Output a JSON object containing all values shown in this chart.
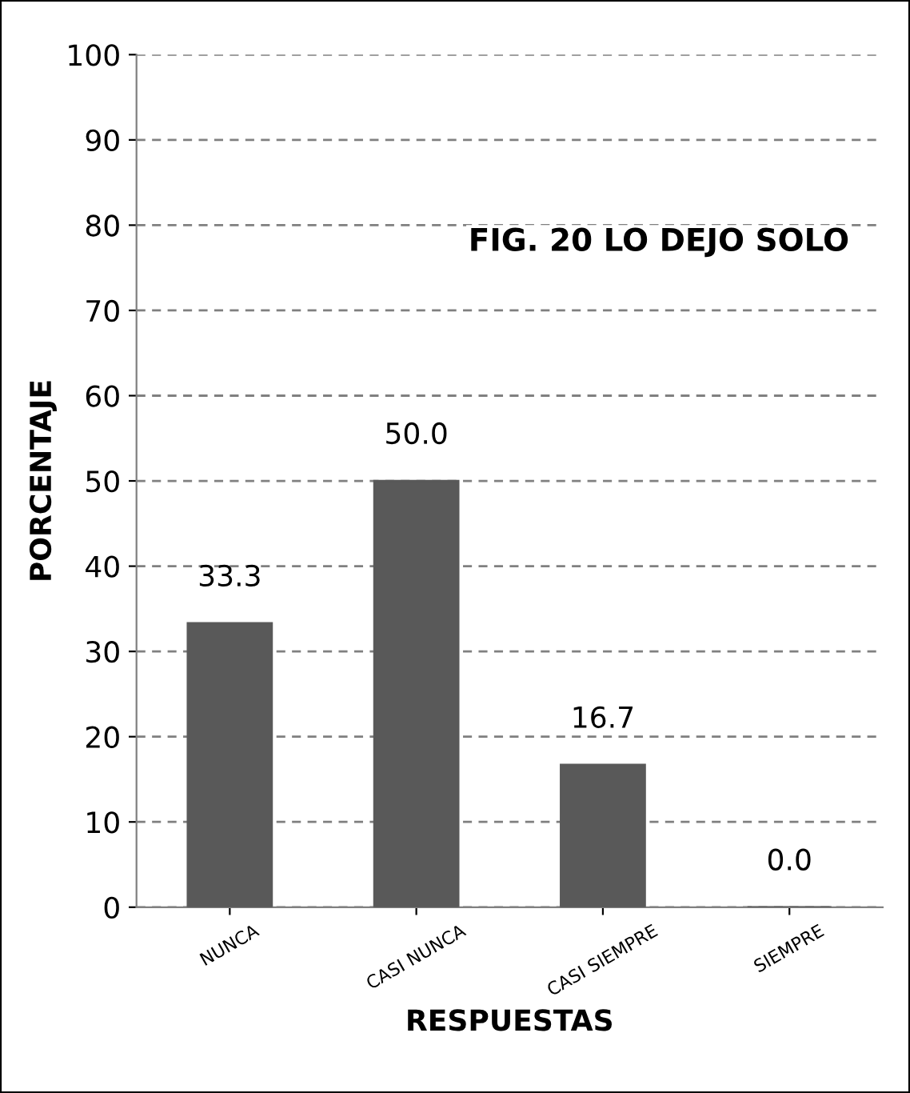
{
  "chart_data": {
    "type": "bar",
    "title": "FIG. 20 LO DEJO SOLO",
    "xlabel": "RESPUESTAS",
    "ylabel": "PORCENTAJE",
    "categories": [
      "NUNCA",
      "CASI NUNCA",
      "CASI SIEMPRE",
      "SIEMPRE"
    ],
    "values": [
      33.3,
      50.0,
      16.7,
      0.0
    ],
    "value_labels": [
      "33.3",
      "50.0",
      "16.7",
      "0.0"
    ],
    "color": "#595959",
    "ylim": [
      0,
      100
    ],
    "yticks": [
      0,
      10,
      20,
      30,
      40,
      50,
      60,
      70,
      80,
      90,
      100
    ],
    "grid": "y",
    "legend": false
  }
}
